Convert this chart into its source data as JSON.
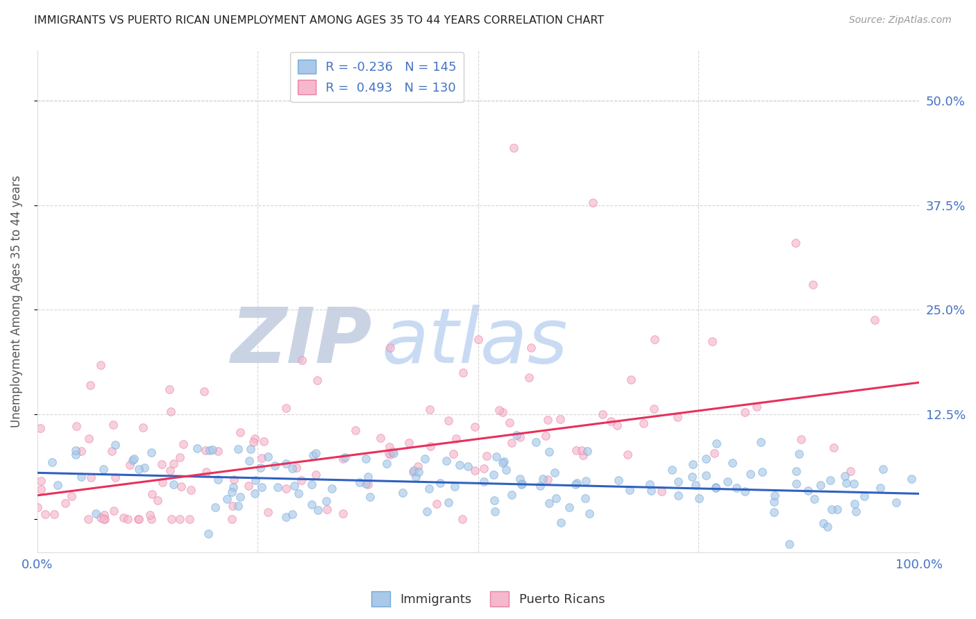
{
  "title": "IMMIGRANTS VS PUERTO RICAN UNEMPLOYMENT AMONG AGES 35 TO 44 YEARS CORRELATION CHART",
  "source": "Source: ZipAtlas.com",
  "ylabel": "Unemployment Among Ages 35 to 44 years",
  "xlabel": "",
  "xlim": [
    0.0,
    1.0
  ],
  "ylim": [
    -0.04,
    0.56
  ],
  "yticks": [
    0.0,
    0.125,
    0.25,
    0.375,
    0.5
  ],
  "ytick_labels": [
    "",
    "12.5%",
    "25.0%",
    "37.5%",
    "50.0%"
  ],
  "xticks": [
    0.0,
    0.25,
    0.5,
    0.75,
    1.0
  ],
  "xtick_labels": [
    "0.0%",
    "",
    "",
    "",
    "100.0%"
  ],
  "immigrants_R": -0.236,
  "immigrants_N": 145,
  "puertoricans_R": 0.493,
  "puertoricans_N": 130,
  "immigrant_color": "#aac8e8",
  "immigrant_edge_color": "#70aad8",
  "puertorican_color": "#f5b8cc",
  "puertorican_edge_color": "#e880a8",
  "trend_immigrant_color": "#3060c0",
  "trend_puertorican_color": "#e8305a",
  "background_color": "#ffffff",
  "grid_color": "#cccccc",
  "title_color": "#222222",
  "axis_label_color": "#555555",
  "tick_label_color": "#4472c4",
  "watermark_zip_color": "#c0cce0",
  "watermark_atlas_color": "#b8d0f0",
  "marker_size": 70,
  "marker_alpha": 0.65,
  "trend_linewidth": 2.2
}
